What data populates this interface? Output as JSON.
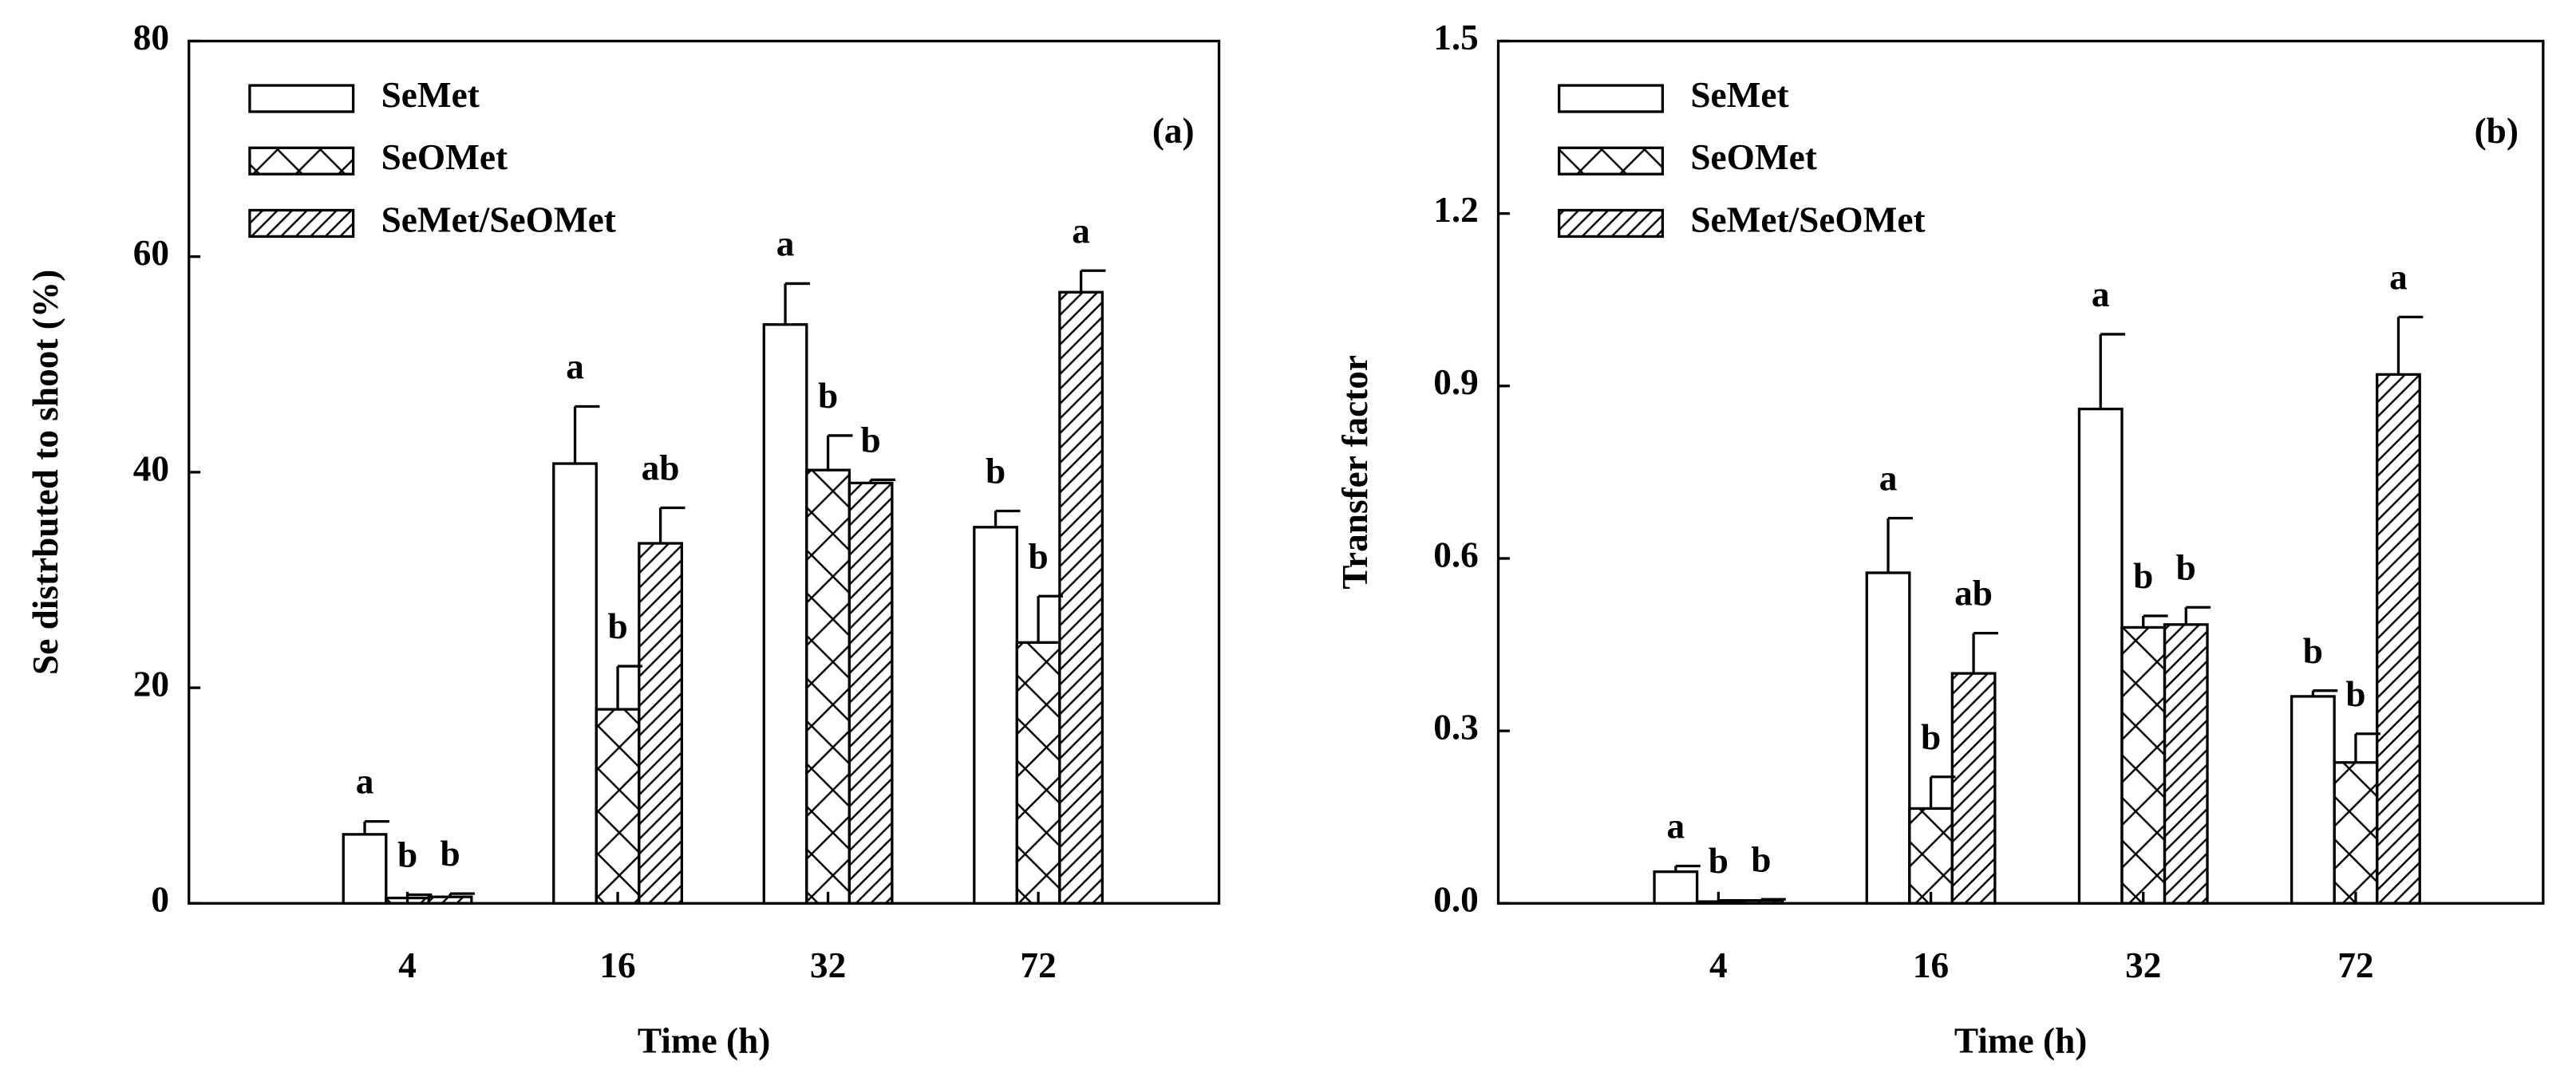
{
  "chart_data": [
    {
      "type": "bar",
      "panel_label": "(a)",
      "y_label": "Se distrbuted to shoot (%)",
      "x_label": "Time (h)",
      "categories": [
        "4",
        "16",
        "32",
        "72"
      ],
      "ylim": [
        0,
        80
      ],
      "yticks": [
        0,
        20,
        40,
        60,
        80
      ],
      "legend": "upper left",
      "series": [
        {
          "name": "SeMet",
          "color": "#ffffff",
          "pattern": "none",
          "values": [
            6.4,
            40.8,
            53.7,
            34.9
          ],
          "errors": [
            1.2,
            5.3,
            3.8,
            1.5
          ],
          "annotations": [
            "a",
            "a",
            "a",
            "b"
          ]
        },
        {
          "name": "SeOMet",
          "color": "#ffffff",
          "pattern": "crosshatch",
          "values": [
            0.5,
            18.0,
            40.2,
            24.2
          ],
          "errors": [
            0.3,
            4.0,
            3.2,
            4.3
          ],
          "annotations": [
            "b",
            "b",
            "b",
            "b"
          ]
        },
        {
          "name": "SeMet/SeOMet",
          "color": "#ffffff",
          "pattern": "diagonal",
          "values": [
            0.6,
            33.4,
            39.0,
            56.7
          ],
          "errors": [
            0.3,
            3.3,
            0.3,
            2.0
          ],
          "annotations": [
            "b",
            "ab",
            "b",
            "a"
          ]
        }
      ]
    },
    {
      "type": "bar",
      "panel_label": "(b)",
      "y_label": "Transfer factor",
      "x_label": "Time (h)",
      "categories": [
        "4",
        "16",
        "32",
        "72"
      ],
      "ylim": [
        0,
        1.5
      ],
      "yticks": [
        {
          "value": 0,
          "label": "0.0"
        },
        0.3,
        0.6,
        0.9,
        1.2,
        1.5
      ],
      "legend": "upper left",
      "series": [
        {
          "name": "SeMet",
          "color": "#ffffff",
          "pattern": "none",
          "values": [
            0.055,
            0.575,
            0.86,
            0.36
          ],
          "errors": [
            0.01,
            0.095,
            0.13,
            0.01
          ],
          "annotations": [
            "a",
            "a",
            "a",
            "b"
          ]
        },
        {
          "name": "SeOMet",
          "color": "#ffffff",
          "pattern": "crosshatch",
          "values": [
            0.003,
            0.165,
            0.48,
            0.245
          ],
          "errors": [
            0.002,
            0.055,
            0.02,
            0.05
          ],
          "annotations": [
            "b",
            "b",
            "b",
            "b"
          ]
        },
        {
          "name": "SeMet/SeOMet",
          "color": "#ffffff",
          "pattern": "diagonal",
          "values": [
            0.005,
            0.4,
            0.485,
            0.92
          ],
          "errors": [
            0.002,
            0.07,
            0.03,
            0.1
          ],
          "annotations": [
            "b",
            "ab",
            "b",
            "a"
          ]
        }
      ]
    }
  ]
}
